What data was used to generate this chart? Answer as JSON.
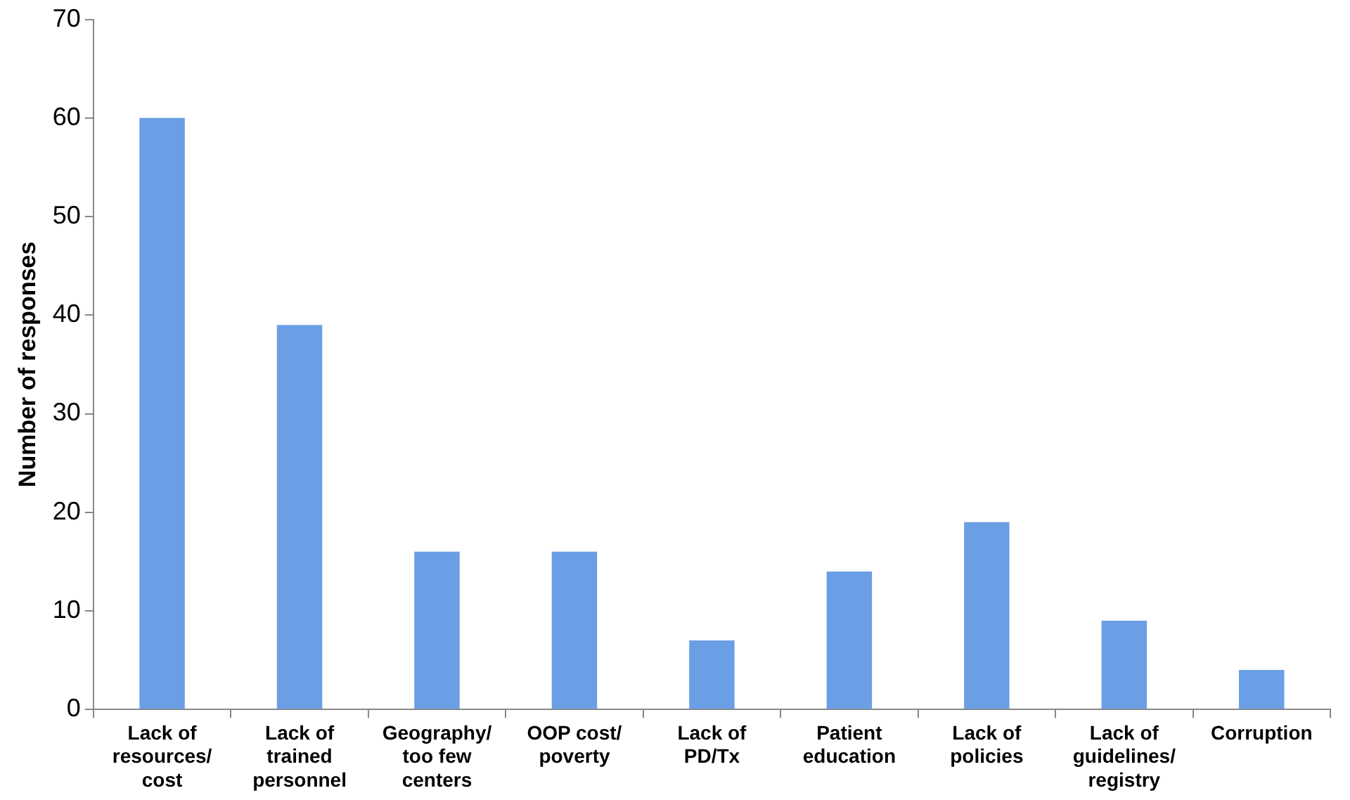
{
  "chart_data": {
    "type": "bar",
    "ylabel": "Number of responses",
    "categories": [
      "Lack of resources/ cost",
      "Lack of trained personnel",
      "Geography/ too few centers",
      "OOP cost/ poverty",
      "Lack of PD/Tx",
      "Patient education",
      "Lack of policies",
      "Lack of guidelines/ registry",
      "Corruption"
    ],
    "values": [
      60,
      39,
      16,
      16,
      7,
      14,
      19,
      9,
      4
    ],
    "color": "#6a9fe6",
    "ylim": [
      0,
      70
    ],
    "yticks": [
      0,
      10,
      20,
      30,
      40,
      50,
      60,
      70
    ],
    "grid": false,
    "legend": false
  }
}
